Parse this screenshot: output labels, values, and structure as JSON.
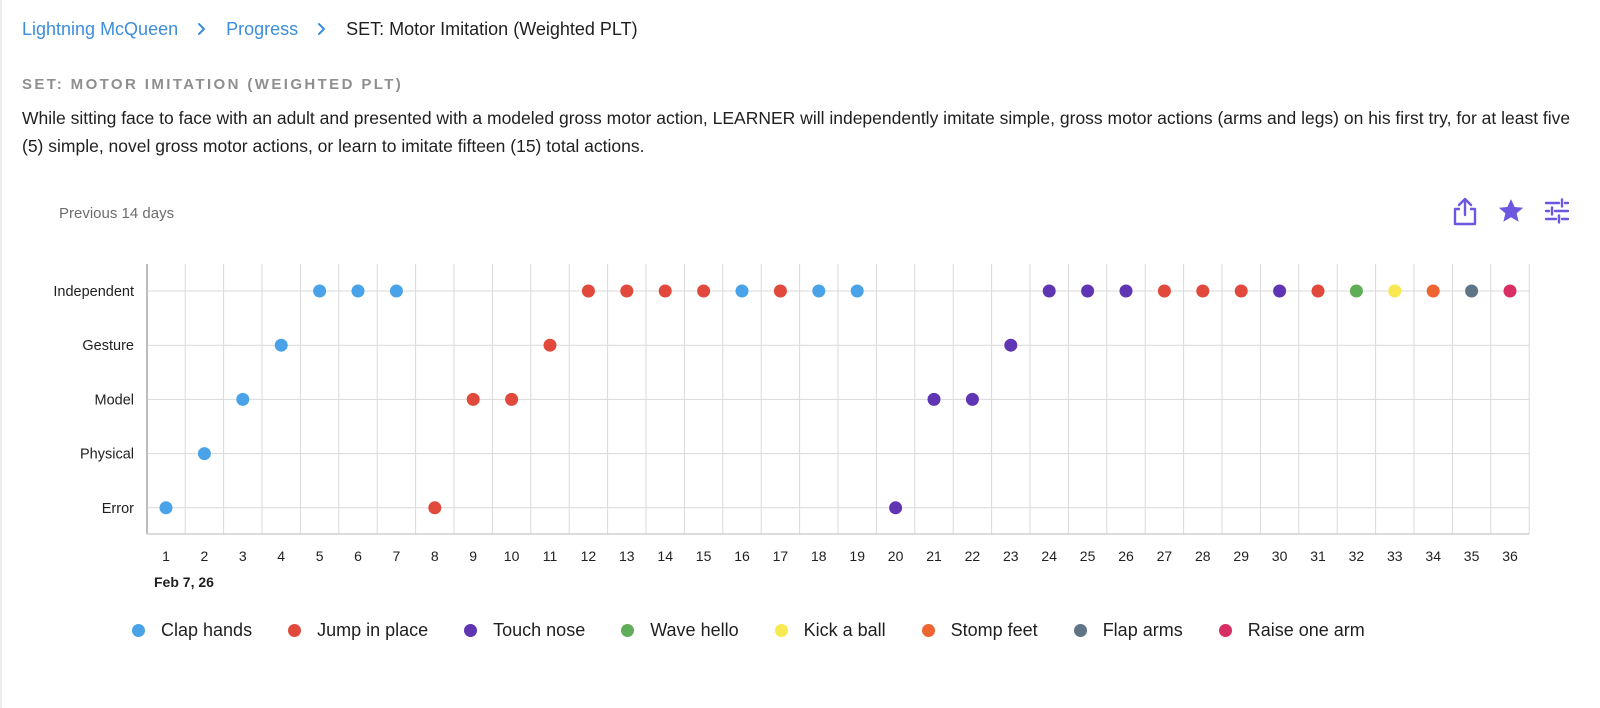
{
  "breadcrumb": {
    "items": [
      "Lightning McQueen",
      "Progress",
      "SET: Motor Imitation (Weighted PLT)"
    ]
  },
  "goal": {
    "heading": "SET: MOTOR IMITATION (WEIGHTED PLT)",
    "description": "While sitting face to face with an adult and presented with a modeled gross motor action, LEARNER will independently imitate simple, gross motor actions (arms and legs) on his first try, for at least five (5) simple, novel gross motor actions, or learn to imitate fifteen (15) total actions."
  },
  "chart_header": {
    "period_label": "Previous 14 days"
  },
  "toolbar": {
    "icons": [
      "share-icon",
      "star-icon",
      "tune-icon"
    ],
    "icon_color": "#6b57e0"
  },
  "chart_data": {
    "type": "scatter",
    "x": [
      1,
      2,
      3,
      4,
      5,
      6,
      7,
      8,
      9,
      10,
      11,
      12,
      13,
      14,
      15,
      16,
      17,
      18,
      19,
      20,
      21,
      22,
      23,
      24,
      25,
      26,
      27,
      28,
      29,
      30,
      31,
      32,
      33,
      34,
      35,
      36
    ],
    "y_categories": [
      "Error",
      "Physical",
      "Model",
      "Gesture",
      "Independent"
    ],
    "x_start_label": "Feb 7, 26",
    "points": [
      {
        "x": 1,
        "level": "Error",
        "series": "Clap hands"
      },
      {
        "x": 2,
        "level": "Physical",
        "series": "Clap hands"
      },
      {
        "x": 3,
        "level": "Model",
        "series": "Clap hands"
      },
      {
        "x": 4,
        "level": "Gesture",
        "series": "Clap hands"
      },
      {
        "x": 5,
        "level": "Independent",
        "series": "Clap hands"
      },
      {
        "x": 6,
        "level": "Independent",
        "series": "Clap hands"
      },
      {
        "x": 7,
        "level": "Independent",
        "series": "Clap hands"
      },
      {
        "x": 8,
        "level": "Error",
        "series": "Jump in place"
      },
      {
        "x": 9,
        "level": "Model",
        "series": "Jump in place"
      },
      {
        "x": 10,
        "level": "Model",
        "series": "Jump in place"
      },
      {
        "x": 11,
        "level": "Gesture",
        "series": "Jump in place"
      },
      {
        "x": 12,
        "level": "Independent",
        "series": "Jump in place"
      },
      {
        "x": 13,
        "level": "Independent",
        "series": "Jump in place"
      },
      {
        "x": 14,
        "level": "Independent",
        "series": "Jump in place"
      },
      {
        "x": 15,
        "level": "Independent",
        "series": "Jump in place"
      },
      {
        "x": 16,
        "level": "Independent",
        "series": "Clap hands"
      },
      {
        "x": 17,
        "level": "Independent",
        "series": "Jump in place"
      },
      {
        "x": 18,
        "level": "Independent",
        "series": "Clap hands"
      },
      {
        "x": 19,
        "level": "Independent",
        "series": "Clap hands"
      },
      {
        "x": 20,
        "level": "Error",
        "series": "Touch nose"
      },
      {
        "x": 21,
        "level": "Model",
        "series": "Touch nose"
      },
      {
        "x": 22,
        "level": "Model",
        "series": "Touch nose"
      },
      {
        "x": 23,
        "level": "Gesture",
        "series": "Touch nose"
      },
      {
        "x": 24,
        "level": "Independent",
        "series": "Touch nose"
      },
      {
        "x": 25,
        "level": "Independent",
        "series": "Touch nose"
      },
      {
        "x": 26,
        "level": "Independent",
        "series": "Touch nose"
      },
      {
        "x": 27,
        "level": "Independent",
        "series": "Jump in place"
      },
      {
        "x": 28,
        "level": "Independent",
        "series": "Jump in place"
      },
      {
        "x": 29,
        "level": "Independent",
        "series": "Jump in place"
      },
      {
        "x": 30,
        "level": "Independent",
        "series": "Touch nose"
      },
      {
        "x": 31,
        "level": "Independent",
        "series": "Jump in place"
      },
      {
        "x": 32,
        "level": "Independent",
        "series": "Wave hello"
      },
      {
        "x": 33,
        "level": "Independent",
        "series": "Kick a ball"
      },
      {
        "x": 34,
        "level": "Independent",
        "series": "Stomp feet"
      },
      {
        "x": 35,
        "level": "Independent",
        "series": "Flap arms"
      },
      {
        "x": 36,
        "level": "Independent",
        "series": "Raise one arm"
      }
    ],
    "series": [
      {
        "name": "Clap hands",
        "color": "#4aa3e8"
      },
      {
        "name": "Jump in place",
        "color": "#e0493b"
      },
      {
        "name": "Touch nose",
        "color": "#6035b3"
      },
      {
        "name": "Wave hello",
        "color": "#5fad56"
      },
      {
        "name": "Kick a ball",
        "color": "#f7e94f"
      },
      {
        "name": "Stomp feet",
        "color": "#ef6532"
      },
      {
        "name": "Flap arms",
        "color": "#5f7587"
      },
      {
        "name": "Raise one arm",
        "color": "#d92e63"
      }
    ],
    "grid": true,
    "legend_position": "bottom"
  }
}
